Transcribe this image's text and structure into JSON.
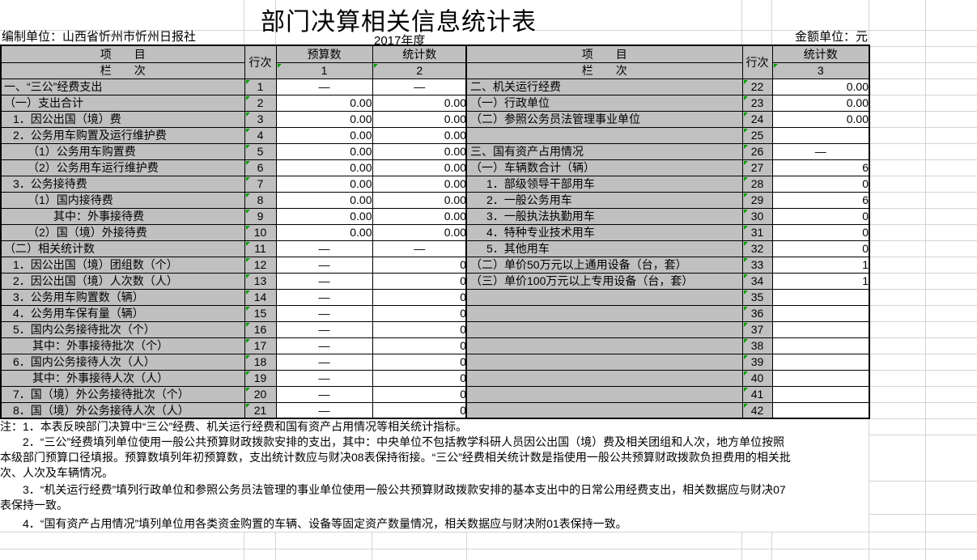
{
  "title": "部门决算相关信息统计表",
  "meta": {
    "prepared_by": "编制单位：山西省忻州市忻州日报社",
    "year": "2017年度",
    "unit": "金额单位：元"
  },
  "colors": {
    "cell_gray": "#c0c0c0",
    "grid_line": "#d4d4d4",
    "error_indicator_green": "#00A000",
    "border_black": "#000000"
  },
  "left_table": {
    "headers": {
      "item": "项　　目",
      "col_label": "栏　　次",
      "row_no": "行次",
      "budget": "预算数",
      "stat": "统计数",
      "budget_col_no": "1",
      "stat_col_no": "2"
    },
    "rows": [
      {
        "item": "一、“三公”经费支出",
        "level": 0,
        "no": "1",
        "budget": "—",
        "stat": "—"
      },
      {
        "item": "（一）支出合计",
        "level": 0,
        "no": "2",
        "budget": "0.00",
        "stat": "0.00"
      },
      {
        "item": "1．因公出国（境）费",
        "level": 1,
        "no": "3",
        "budget": "0.00",
        "stat": "0.00"
      },
      {
        "item": "2．公务用车购置及运行维护费",
        "level": 1,
        "no": "4",
        "budget": "0.00",
        "stat": "0.00"
      },
      {
        "item": "（1）公务用车购置费",
        "level": 2,
        "no": "5",
        "budget": "0.00",
        "stat": "0.00"
      },
      {
        "item": "（2）公务用车运行维护费",
        "level": 2,
        "no": "6",
        "budget": "0.00",
        "stat": "0.00"
      },
      {
        "item": "3．公务接待费",
        "level": 1,
        "no": "7",
        "budget": "0.00",
        "stat": "0.00"
      },
      {
        "item": "（1）国内接待费",
        "level": 2,
        "no": "8",
        "budget": "0.00",
        "stat": "0.00"
      },
      {
        "item": "其中：外事接待费",
        "level": 4,
        "no": "9",
        "budget": "0.00",
        "stat": "0.00"
      },
      {
        "item": "（2）国（境）外接待费",
        "level": 2,
        "no": "10",
        "budget": "0.00",
        "stat": "0.00"
      },
      {
        "item": "（二）相关统计数",
        "level": 0,
        "no": "11",
        "budget": "—",
        "stat": "—"
      },
      {
        "item": "1．因公出国（境）团组数（个）",
        "level": 1,
        "no": "12",
        "budget": "—",
        "stat": "0"
      },
      {
        "item": "2．因公出国（境）人次数（人）",
        "level": 1,
        "no": "13",
        "budget": "—",
        "stat": "0"
      },
      {
        "item": "3．公务用车购置数（辆）",
        "level": 1,
        "no": "14",
        "budget": "—",
        "stat": "0"
      },
      {
        "item": "4．公务用车保有量（辆）",
        "level": 1,
        "no": "15",
        "budget": "—",
        "stat": "0"
      },
      {
        "item": "5．国内公务接待批次（个）",
        "level": 1,
        "no": "16",
        "budget": "—",
        "stat": "0"
      },
      {
        "item": "其中：外事接待批次（个）",
        "level": 3,
        "no": "17",
        "budget": "—",
        "stat": "0"
      },
      {
        "item": "6．国内公务接待人次（人）",
        "level": 1,
        "no": "18",
        "budget": "—",
        "stat": "0"
      },
      {
        "item": "其中：外事接待人次（人）",
        "level": 3,
        "no": "19",
        "budget": "—",
        "stat": "0"
      },
      {
        "item": "7．国（境）外公务接待批次（个）",
        "level": 1,
        "no": "20",
        "budget": "—",
        "stat": "0"
      },
      {
        "item": "8．国（境）外公务接待人次（人）",
        "level": 1,
        "no": "21",
        "budget": "—",
        "stat": "0"
      }
    ]
  },
  "right_table": {
    "headers": {
      "item": "项　　目",
      "col_label": "栏　　次",
      "row_no": "行次",
      "stat": "统计数",
      "stat_col_no": "3"
    },
    "rows": [
      {
        "item": "二、机关运行经费",
        "level": 0,
        "no": "22",
        "stat": "0.00"
      },
      {
        "item": "（一）行政单位",
        "level": 0,
        "no": "23",
        "stat": "0.00"
      },
      {
        "item": "（二）参照公务员法管理事业单位",
        "level": 0,
        "no": "24",
        "stat": "0.00"
      },
      {
        "item": "",
        "level": 0,
        "no": "25",
        "stat": ""
      },
      {
        "item": "三、国有资产占用情况",
        "level": 0,
        "no": "26",
        "stat": "—"
      },
      {
        "item": "（一）车辆数合计（辆）",
        "level": 0,
        "no": "27",
        "stat": "6"
      },
      {
        "item": "1．部级领导干部用车",
        "level": 1,
        "no": "28",
        "stat": "0"
      },
      {
        "item": "2．一般公务用车",
        "level": 1,
        "no": "29",
        "stat": "6"
      },
      {
        "item": "3．一般执法执勤用车",
        "level": 1,
        "no": "30",
        "stat": "0"
      },
      {
        "item": "4．特种专业技术用车",
        "level": 1,
        "no": "31",
        "stat": "0"
      },
      {
        "item": "5．其他用车",
        "level": 1,
        "no": "32",
        "stat": "0"
      },
      {
        "item": "（二）单价50万元以上通用设备（台，套）",
        "level": 0,
        "no": "33",
        "stat": "1"
      },
      {
        "item": "（三）单价100万元以上专用设备（台，套）",
        "level": 0,
        "no": "34",
        "stat": "1"
      },
      {
        "item": "",
        "level": 0,
        "no": "35",
        "stat": ""
      },
      {
        "item": "",
        "level": 0,
        "no": "36",
        "stat": ""
      },
      {
        "item": "",
        "level": 0,
        "no": "37",
        "stat": ""
      },
      {
        "item": "",
        "level": 0,
        "no": "38",
        "stat": ""
      },
      {
        "item": "",
        "level": 0,
        "no": "39",
        "stat": ""
      },
      {
        "item": "",
        "level": 0,
        "no": "40",
        "stat": ""
      },
      {
        "item": "",
        "level": 0,
        "no": "41",
        "stat": ""
      },
      {
        "item": "",
        "level": 0,
        "no": "42",
        "stat": ""
      }
    ]
  },
  "notes": [
    {
      "lines": [
        "注：1．本表反映部门决算中“三公”经费、机关运行经费和国有资产占用情况等相关统计指标。"
      ]
    },
    {
      "lines": [
        "　　2．“三公”经费填列单位使用一般公共预算财政拨款安排的支出，其中：中央单位不包括教学科研人员因公出国（境）费及相关团组和人次，地方单位按照",
        "本级部门预算口径填报。预算数填列年初预算数，支出统计数应与财决08表保持衔接。“三公”经费相关统计数是指使用一般公共预算财政拨款负担费用的相关批",
        "次、人次及车辆情况。"
      ]
    },
    {
      "lines": [
        "　　3．“机关运行经费”填列行政单位和参照公务员法管理的事业单位使用一般公共预算财政拨款安排的基本支出中的日常公用经费支出，相关数据应与财决07",
        "表保持一致。"
      ]
    },
    {
      "lines": [
        "　　4．“国有资产占用情况”填列单位用各类资金购置的车辆、设备等固定资产数量情况，相关数据应与财决附01表保持一致。"
      ]
    }
  ]
}
